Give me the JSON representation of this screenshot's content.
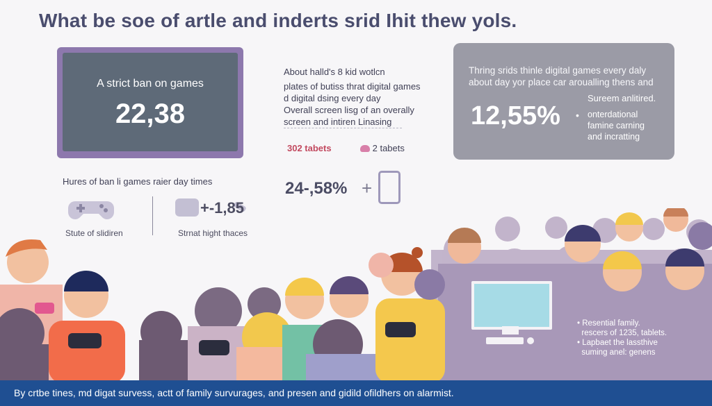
{
  "title": "What be soe of artle and inderts srid Ihit thew yols.",
  "tablet_card": {
    "label": "A strict ban on games",
    "value": "22,38"
  },
  "middle": {
    "heading": "About halld's 8 kid wotlcn",
    "lines_a": "plates of butiss thrat digital games d digital dsing every day",
    "lines_b": "Overall screen lisg of an overally screen and intiren Linasing",
    "tablets_a": "302 tabets",
    "tablets_b": "2 tabets",
    "big_stat": "24-,58%"
  },
  "right_panel": {
    "text": "Thring srids thinle digital games every daly about day yor place car aroualling thens and",
    "value": "12,55%",
    "sub_title": "Sureem anlitired.",
    "bullet_lines": [
      "onterdational",
      "famine carning",
      "and incratting"
    ]
  },
  "left_lower": {
    "hours": "Hures of ban li games raier day times",
    "study": "Stute of slidiren",
    "strat_value": "+-1,85",
    "strat_label": "Strnat hight thaces"
  },
  "scene_notes": [
    "Resential family.",
    "rescers of 1235, tablets.",
    "Lapbaet the lassthive",
    "suming anel: genens"
  ],
  "footer": "By crtbe tines, md digat survess, actt of family survurages, and presen and gidild ofildhers on alarmist.",
  "colors": {
    "footer_bg": "#1f4f92",
    "tablet_frame": "#8d78ad",
    "gray_panel": "#9b9ba6",
    "accent_pink": "#d87fa9"
  }
}
